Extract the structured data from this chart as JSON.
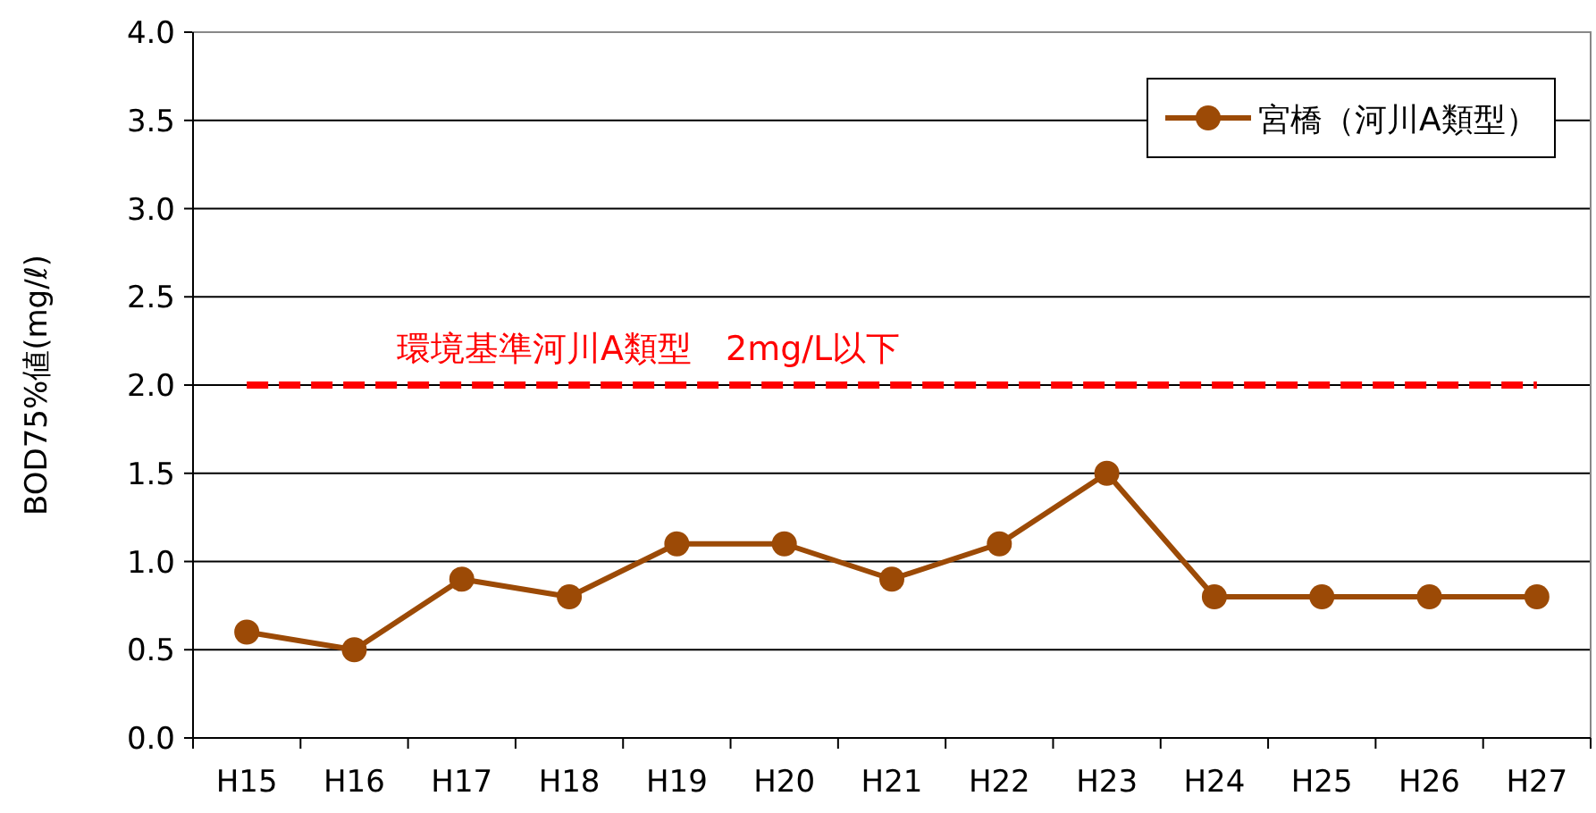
{
  "chart_data": {
    "type": "line",
    "ylabel": "BOD75%値(mg/ℓ)",
    "categories": [
      "H15",
      "H16",
      "H17",
      "H18",
      "H19",
      "H20",
      "H21",
      "H22",
      "H23",
      "H24",
      "H25",
      "H26",
      "H27"
    ],
    "series": [
      {
        "name": "宮橋（河川A類型）",
        "color": "#9c4a06",
        "values": [
          0.6,
          0.5,
          0.9,
          0.8,
          1.1,
          1.1,
          0.9,
          1.1,
          1.5,
          0.8,
          0.8,
          0.8,
          0.8
        ]
      }
    ],
    "ylim": [
      0,
      4
    ],
    "yticks": [
      {
        "value": 0,
        "label": "0.0"
      },
      {
        "value": 0.5,
        "label": "0.5"
      },
      {
        "value": 1,
        "label": "1.0"
      },
      {
        "value": 1.5,
        "label": "1.5"
      },
      {
        "value": 2,
        "label": "2.0"
      },
      {
        "value": 2.5,
        "label": "2.5"
      },
      {
        "value": 3,
        "label": "3.0"
      },
      {
        "value": 3.5,
        "label": "3.5"
      },
      {
        "value": 4,
        "label": "4.0"
      }
    ],
    "ref_lines": [
      {
        "axis": "y",
        "value": 2,
        "label": "環境基準河川A類型　2mg/L以下",
        "color": "#ff0000",
        "line_style": "dashed"
      }
    ],
    "grid": "y",
    "legend": "top right",
    "marker": "circle",
    "line_style": "solid"
  }
}
